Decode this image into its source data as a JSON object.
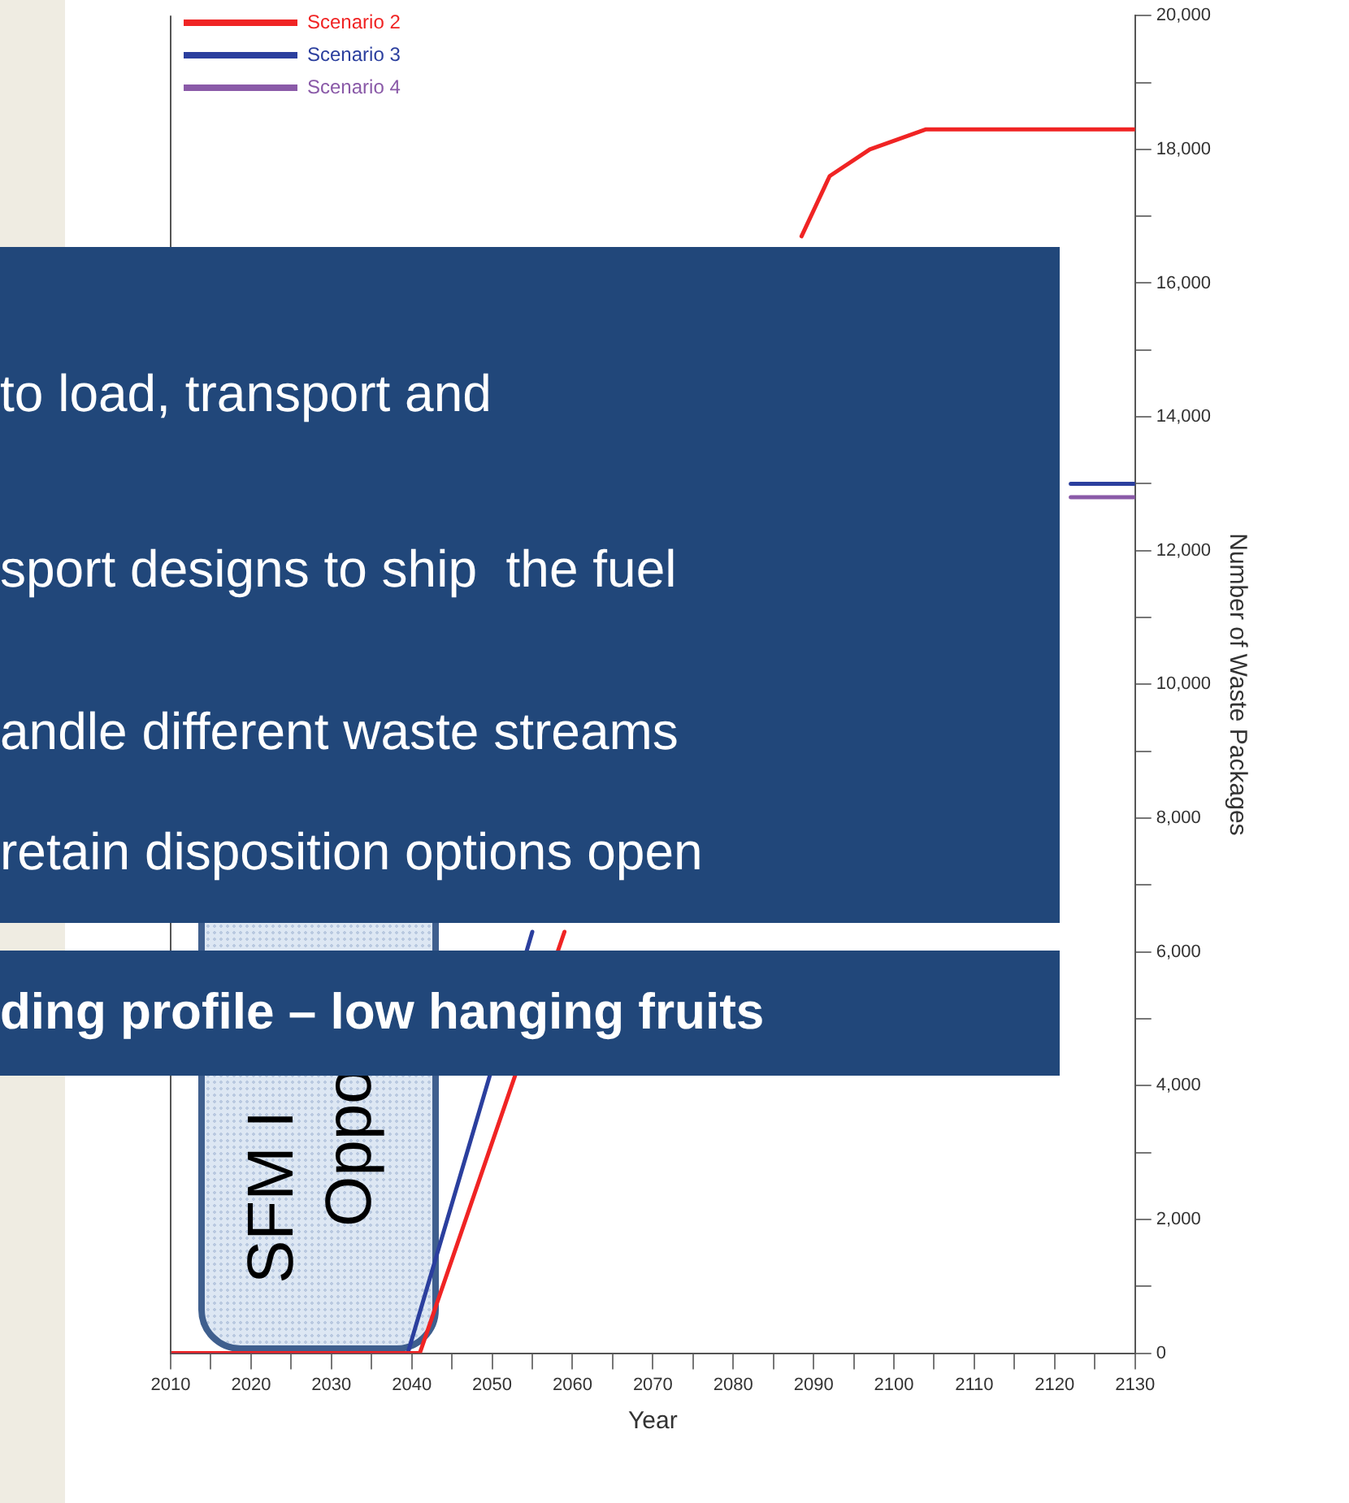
{
  "chart_data": {
    "type": "line",
    "xlabel": "Year",
    "ylabel": "Number of Waste Packages",
    "xlim": [
      2010,
      2130
    ],
    "xticks": [
      2010,
      {
        "value": 2015,
        "label": null
      },
      2020,
      {
        "value": 2025,
        "label": null
      },
      2030,
      {
        "value": 2035,
        "label": null
      },
      2040,
      {
        "value": 2045,
        "label": null
      },
      2050,
      {
        "value": 2055,
        "label": null
      },
      2060,
      {
        "value": 2065,
        "label": null
      },
      2070,
      {
        "value": 2075,
        "label": null
      },
      2080,
      {
        "value": 2085,
        "label": null
      },
      2090,
      {
        "value": 2095,
        "label": null
      },
      2100,
      {
        "value": 2105,
        "label": null
      },
      2110,
      {
        "value": 2115,
        "label": null
      },
      2120,
      {
        "value": 2125,
        "label": null
      },
      2130
    ],
    "ylim": [
      0,
      20000
    ],
    "yticks": [
      0,
      {
        "value": 1000,
        "label": null
      },
      {
        "value": 2000,
        "label": "2,000"
      },
      {
        "value": 3000,
        "label": null
      },
      {
        "value": 4000,
        "label": "4,000"
      },
      {
        "value": 5000,
        "label": null
      },
      {
        "value": 6000,
        "label": "6,000"
      },
      {
        "value": 7000,
        "label": null
      },
      {
        "value": 8000,
        "label": "8,000"
      },
      {
        "value": 9000,
        "label": null
      },
      {
        "value": 10000,
        "label": "10,000"
      },
      {
        "value": 11000,
        "label": null
      },
      {
        "value": 12000,
        "label": "12,000"
      },
      {
        "value": 13000,
        "label": null
      },
      {
        "value": 14000,
        "label": "14,000"
      },
      {
        "value": 15000,
        "label": null
      },
      {
        "value": 16000,
        "label": "16,000"
      },
      {
        "value": 17000,
        "label": null
      },
      {
        "value": 18000,
        "label": "18,000"
      },
      {
        "value": 19000,
        "label": null
      },
      {
        "value": 20000,
        "label": "20,000"
      }
    ],
    "grid": false,
    "legend": "top left",
    "marker": "none",
    "line_style": "solid",
    "series": [
      {
        "name": "Scenario 2",
        "color": "#f02424",
        "x": [
          2010,
          2041,
          2059,
          2070,
          2088.5,
          2092,
          2097,
          2104,
          2130
        ],
        "values": [
          0,
          0,
          6300,
          null,
          16700,
          17600,
          18000,
          18300,
          18300
        ]
      },
      {
        "name": "Scenario 3",
        "color": "#2b3f9e",
        "x": [
          2010,
          2039.5,
          2055,
          2070,
          2122,
          2130
        ],
        "values": [
          0,
          0,
          6300,
          null,
          13000,
          13000
        ]
      },
      {
        "name": "Scenario 4",
        "color": "#8a5aa8",
        "x": [
          2122,
          2130
        ],
        "values": [
          12800,
          12800
        ]
      }
    ],
    "annotations": [
      "to load, transport and",
      "sport designs to ship  the fuel",
      "andle different waste streams",
      "retain disposition options open",
      "ding profile – low hanging fruits",
      "SFM I",
      "Oppo"
    ]
  }
}
